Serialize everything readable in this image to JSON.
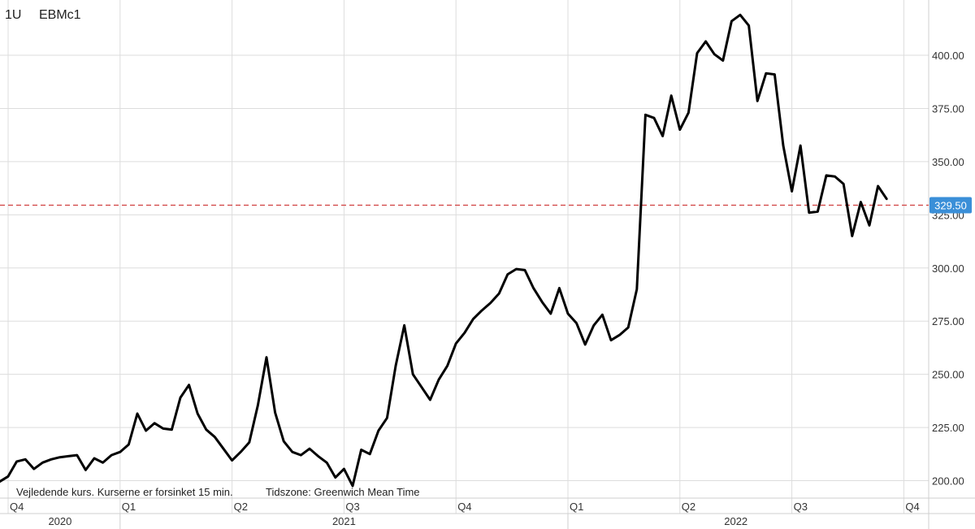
{
  "header": {
    "timeframe": "1U",
    "symbol": "EBMc1"
  },
  "footer": {
    "disclaimer": "Vejledende kurs. Kurserne er forsinket 15 min.",
    "timezone": "Tidszone: Greenwich Mean Time"
  },
  "colors": {
    "line": "#000000",
    "grid": "#dddddd",
    "reference": "#d04040",
    "price_badge": "#3a8fd8",
    "price_badge_text": "#ffffff"
  },
  "chart_data": {
    "type": "line",
    "title": "",
    "xlabel": "",
    "ylabel": "",
    "ylim": [
      190,
      422
    ],
    "y_ticks": [
      {
        "value": 200,
        "label": "200.00"
      },
      {
        "value": 225,
        "label": "225.00"
      },
      {
        "value": 250,
        "label": "250.00"
      },
      {
        "value": 275,
        "label": "275.00"
      },
      {
        "value": 300,
        "label": "300.00"
      },
      {
        "value": 325,
        "label": "325.00"
      },
      {
        "value": 350,
        "label": "350.00"
      },
      {
        "value": 375,
        "label": "375.00"
      },
      {
        "value": 400,
        "label": "400.00"
      }
    ],
    "quarter_ticks": [
      {
        "label": "Q4",
        "week": 0
      },
      {
        "label": "Q1",
        "week": 13
      },
      {
        "label": "Q2",
        "week": 26
      },
      {
        "label": "Q3",
        "week": 39
      },
      {
        "label": "Q4",
        "week": 52
      },
      {
        "label": "Q1",
        "week": 65
      },
      {
        "label": "Q2",
        "week": 78
      },
      {
        "label": "Q3",
        "week": 91
      },
      {
        "label": "Q4",
        "week": 104
      }
    ],
    "years": [
      {
        "label": "2020",
        "start": -1,
        "end": 13
      },
      {
        "label": "2021",
        "start": 13,
        "end": 65
      },
      {
        "label": "2022",
        "start": 65,
        "end": 104
      }
    ],
    "x_range": [
      -1,
      106.5
    ],
    "last_price": {
      "value": 329.5,
      "label": "329.50"
    },
    "series": [
      {
        "values": [
          [
            -1,
            199.5
          ],
          [
            0,
            202
          ],
          [
            1,
            209
          ],
          [
            2,
            210
          ],
          [
            3,
            205.5
          ],
          [
            4,
            208.5
          ],
          [
            5,
            210
          ],
          [
            6,
            211
          ],
          [
            7,
            211.5
          ],
          [
            8,
            212
          ],
          [
            9,
            205
          ],
          [
            10,
            210.5
          ],
          [
            11,
            208.5
          ],
          [
            12,
            212
          ],
          [
            13,
            213.5
          ],
          [
            14,
            217
          ],
          [
            15,
            231.5
          ],
          [
            16,
            223.5
          ],
          [
            17,
            227
          ],
          [
            18,
            224.5
          ],
          [
            19,
            224
          ],
          [
            20,
            239
          ],
          [
            21,
            245
          ],
          [
            22,
            231.5
          ],
          [
            23,
            224
          ],
          [
            24,
            220.5
          ],
          [
            25,
            215
          ],
          [
            26,
            209.5
          ],
          [
            27,
            213.5
          ],
          [
            28,
            218
          ],
          [
            29,
            235.5
          ],
          [
            30,
            258
          ],
          [
            31,
            232
          ],
          [
            32,
            218.5
          ],
          [
            33,
            213.5
          ],
          [
            34,
            212
          ],
          [
            35,
            215
          ],
          [
            36,
            211.5
          ],
          [
            37,
            208.5
          ],
          [
            38,
            201.5
          ],
          [
            39,
            205.5
          ],
          [
            40,
            197.5
          ],
          [
            41,
            214.5
          ],
          [
            42,
            212.5
          ],
          [
            43,
            223.5
          ],
          [
            44,
            229.5
          ],
          [
            45,
            254
          ],
          [
            46,
            273
          ],
          [
            47,
            250
          ],
          [
            48,
            244
          ],
          [
            49,
            238
          ],
          [
            50,
            247.5
          ],
          [
            51,
            254
          ],
          [
            52,
            264.5
          ],
          [
            53,
            269.5
          ],
          [
            54,
            276
          ],
          [
            55,
            280
          ],
          [
            56,
            283.5
          ],
          [
            57,
            288
          ],
          [
            58,
            297
          ],
          [
            59,
            299.5
          ],
          [
            60,
            299
          ],
          [
            61,
            290.5
          ],
          [
            62,
            284
          ],
          [
            63,
            278.5
          ],
          [
            64,
            290.5
          ],
          [
            65,
            278.5
          ],
          [
            66,
            274
          ],
          [
            67,
            264
          ],
          [
            68,
            273
          ],
          [
            69,
            278
          ],
          [
            70,
            266
          ],
          [
            71,
            268.5
          ],
          [
            72,
            272
          ],
          [
            73,
            290
          ],
          [
            74,
            372
          ],
          [
            75,
            370.5
          ],
          [
            76,
            362
          ],
          [
            77,
            381
          ],
          [
            78,
            365
          ],
          [
            79,
            373
          ],
          [
            80,
            401
          ],
          [
            81,
            406.5
          ],
          [
            82,
            400.5
          ],
          [
            83,
            397.5
          ],
          [
            84,
            416
          ],
          [
            85,
            419
          ],
          [
            86,
            414
          ],
          [
            87,
            378.5
          ],
          [
            88,
            391.5
          ],
          [
            89,
            391
          ],
          [
            90,
            357.5
          ],
          [
            91,
            336
          ],
          [
            92,
            357.5
          ],
          [
            93,
            326
          ],
          [
            94,
            326.5
          ],
          [
            95,
            343.5
          ],
          [
            96,
            343
          ],
          [
            97,
            339.5
          ],
          [
            98,
            315
          ],
          [
            99,
            331
          ],
          [
            100,
            320
          ],
          [
            101,
            338.5
          ],
          [
            102,
            332.5
          ]
        ]
      }
    ]
  }
}
